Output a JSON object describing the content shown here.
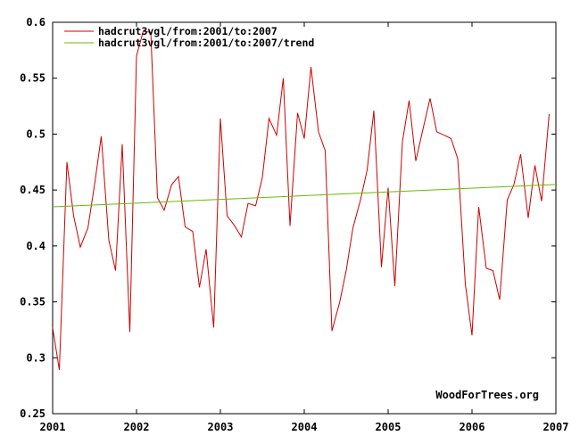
{
  "chart_data": {
    "type": "line",
    "title": "",
    "xlabel": "",
    "ylabel": "",
    "xlim": [
      2001,
      2007
    ],
    "ylim": [
      0.25,
      0.6
    ],
    "x_ticks": [
      2001,
      2002,
      2003,
      2004,
      2005,
      2006,
      2007
    ],
    "x_tick_labels": [
      "2001",
      "2002",
      "2003",
      "2004",
      "2005",
      "2006",
      "2007"
    ],
    "y_ticks": [
      0.25,
      0.3,
      0.35,
      0.4,
      0.45,
      0.5,
      0.55,
      0.6
    ],
    "y_tick_labels": [
      "0.25",
      "0.3",
      "0.35",
      "0.4",
      "0.45",
      "0.5",
      "0.55",
      "0.6"
    ],
    "grid": false,
    "legend_position": "top-left",
    "watermark": "WoodForTrees.org",
    "series": [
      {
        "name": "hadcrut3vgl/from:2001/to:2007",
        "color": "#cc0000",
        "x": [
          2001.0,
          2001.08,
          2001.17,
          2001.25,
          2001.33,
          2001.42,
          2001.5,
          2001.58,
          2001.67,
          2001.75,
          2001.83,
          2001.92,
          2002.0,
          2002.08,
          2002.17,
          2002.25,
          2002.33,
          2002.42,
          2002.5,
          2002.58,
          2002.67,
          2002.75,
          2002.83,
          2002.92,
          2003.0,
          2003.08,
          2003.17,
          2003.25,
          2003.33,
          2003.42,
          2003.5,
          2003.58,
          2003.67,
          2003.75,
          2003.83,
          2003.92,
          2004.0,
          2004.08,
          2004.17,
          2004.25,
          2004.33,
          2004.42,
          2004.5,
          2004.58,
          2004.67,
          2004.75,
          2004.83,
          2004.92,
          2005.0,
          2005.08,
          2005.17,
          2005.25,
          2005.33,
          2005.42,
          2005.5,
          2005.58,
          2005.67,
          2005.75,
          2005.83,
          2005.92,
          2006.0,
          2006.08,
          2006.17,
          2006.25,
          2006.33,
          2006.42,
          2006.5,
          2006.58,
          2006.67,
          2006.75,
          2006.83,
          2006.92
        ],
        "y": [
          0.327,
          0.289,
          0.475,
          0.427,
          0.399,
          0.416,
          0.455,
          0.498,
          0.405,
          0.378,
          0.491,
          0.323,
          0.57,
          0.592,
          0.591,
          0.443,
          0.432,
          0.455,
          0.462,
          0.417,
          0.413,
          0.363,
          0.397,
          0.327,
          0.514,
          0.427,
          0.418,
          0.408,
          0.438,
          0.436,
          0.461,
          0.514,
          0.499,
          0.55,
          0.418,
          0.519,
          0.496,
          0.56,
          0.502,
          0.485,
          0.324,
          0.349,
          0.378,
          0.416,
          0.441,
          0.468,
          0.521,
          0.381,
          0.452,
          0.364,
          0.493,
          0.53,
          0.476,
          0.506,
          0.532,
          0.502,
          0.499,
          0.496,
          0.478,
          0.366,
          0.32,
          0.435,
          0.38,
          0.378,
          0.352,
          0.441,
          0.455,
          0.482,
          0.425,
          0.472,
          0.44,
          0.518
        ]
      },
      {
        "name": "hadcrut3vgl/from:2001/to:2007/trend",
        "color": "#66bb00",
        "x": [
          2001,
          2007
        ],
        "y": [
          0.435,
          0.455
        ]
      }
    ]
  }
}
